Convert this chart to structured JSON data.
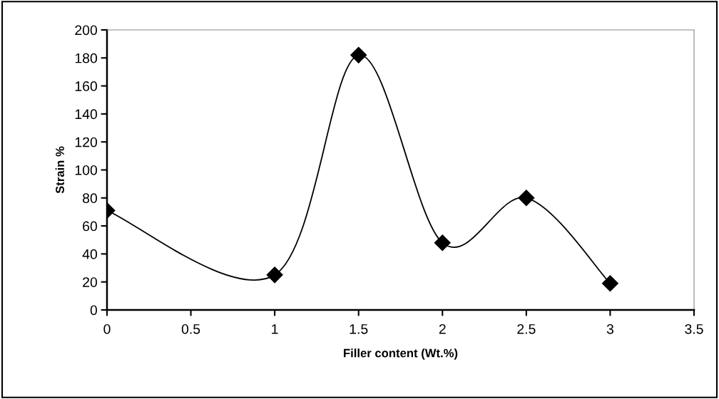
{
  "chart_data": {
    "type": "line",
    "xlabel": "Filler content (Wt.%)",
    "ylabel": "Strain %",
    "series": [
      {
        "color": "#000000",
        "x": [
          0,
          1,
          1.5,
          2,
          2.5,
          3
        ],
        "values": [
          71,
          25,
          182,
          48,
          80,
          19
        ]
      }
    ],
    "xlim": [
      0,
      3.5
    ],
    "xticks": [
      0,
      0.5,
      1,
      1.5,
      2,
      2.5,
      3,
      3.5
    ],
    "ylim": [
      0,
      200
    ],
    "yticks": [
      0,
      20,
      40,
      60,
      80,
      100,
      120,
      140,
      160,
      180,
      200
    ],
    "marker": "diamond",
    "line_style": "solid",
    "grid": false,
    "legend": false
  }
}
